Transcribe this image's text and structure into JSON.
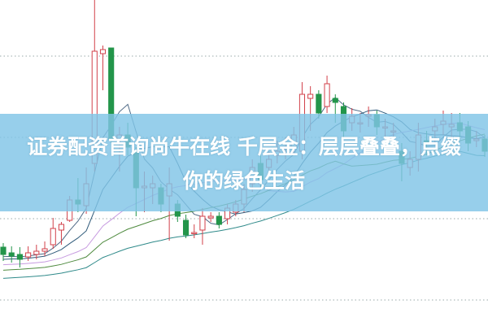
{
  "headline": {
    "line1": "证券配资首询尚牛在线 千层金：层层叠叠，点缀",
    "line2": "你的绿色生活"
  },
  "chart_data": {
    "type": "candlestick",
    "title": "",
    "xlabel": "",
    "ylabel": "",
    "ylim": [
      0,
      401
    ],
    "grid": "horizontal-dotted",
    "gridlines": [
      32,
      132,
      232,
      332
    ],
    "colors": {
      "up": "#d2404a",
      "down": "#23954a",
      "ma5": "#4f6a86",
      "ma10": "#2f5a7a",
      "ma20": "#c79be0",
      "ma30": "#4e8a3e",
      "ma60": "#2f8a8a",
      "banner": "#80c4e6"
    },
    "candles": [
      {
        "o": 97,
        "c": 88,
        "h": 102,
        "l": 80
      },
      {
        "o": 90,
        "c": 86,
        "h": 98,
        "l": 78
      },
      {
        "o": 88,
        "c": 82,
        "h": 97,
        "l": 72
      },
      {
        "o": 85,
        "c": 90,
        "h": 98,
        "l": 80
      },
      {
        "o": 88,
        "c": 92,
        "h": 100,
        "l": 82
      },
      {
        "o": 92,
        "c": 95,
        "h": 104,
        "l": 86
      },
      {
        "o": 100,
        "c": 120,
        "h": 133,
        "l": 95
      },
      {
        "o": 118,
        "c": 125,
        "h": 128,
        "l": 100
      },
      {
        "o": 130,
        "c": 155,
        "h": 160,
        "l": 128
      },
      {
        "o": 155,
        "c": 150,
        "h": 182,
        "l": 140
      },
      {
        "o": 148,
        "c": 175,
        "h": 195,
        "l": 138
      },
      {
        "o": 200,
        "c": 338,
        "h": 401,
        "l": 190
      },
      {
        "o": 335,
        "c": 340,
        "h": 345,
        "l": 290
      },
      {
        "o": 342,
        "c": 230,
        "h": 342,
        "l": 225
      },
      {
        "o": 230,
        "c": 235,
        "h": 245,
        "l": 190
      },
      {
        "o": 235,
        "c": 220,
        "h": 250,
        "l": 210
      },
      {
        "o": 215,
        "c": 170,
        "h": 220,
        "l": 135
      },
      {
        "o": 170,
        "c": 172,
        "h": 190,
        "l": 140
      },
      {
        "o": 170,
        "c": 175,
        "h": 185,
        "l": 150
      },
      {
        "o": 170,
        "c": 150,
        "h": 175,
        "l": 140
      },
      {
        "o": 160,
        "c": 175,
        "h": 195,
        "l": 105
      },
      {
        "o": 150,
        "c": 135,
        "h": 155,
        "l": 128
      },
      {
        "o": 130,
        "c": 112,
        "h": 137,
        "l": 108
      },
      {
        "o": 114,
        "c": 115,
        "h": 125,
        "l": 108
      },
      {
        "o": 118,
        "c": 135,
        "h": 145,
        "l": 100
      },
      {
        "o": 133,
        "c": 135,
        "h": 140,
        "l": 128
      },
      {
        "o": 135,
        "c": 125,
        "h": 140,
        "l": 120
      },
      {
        "o": 132,
        "c": 145,
        "h": 150,
        "l": 125
      },
      {
        "o": 140,
        "c": 150,
        "h": 155,
        "l": 135
      },
      {
        "o": 150,
        "c": 168,
        "h": 175,
        "l": 140
      },
      {
        "o": 175,
        "c": 195,
        "h": 205,
        "l": 165
      },
      {
        "o": 200,
        "c": 180,
        "h": 210,
        "l": 170
      },
      {
        "o": 195,
        "c": 205,
        "h": 215,
        "l": 185
      },
      {
        "o": 210,
        "c": 215,
        "h": 228,
        "l": 200
      },
      {
        "o": 218,
        "c": 220,
        "h": 232,
        "l": 205
      },
      {
        "o": 220,
        "c": 235,
        "h": 245,
        "l": 210
      },
      {
        "o": 215,
        "c": 285,
        "h": 300,
        "l": 205
      },
      {
        "o": 280,
        "c": 285,
        "h": 295,
        "l": 240
      },
      {
        "o": 285,
        "c": 262,
        "h": 290,
        "l": 255
      },
      {
        "o": 270,
        "c": 298,
        "h": 308,
        "l": 262
      },
      {
        "o": 280,
        "c": 275,
        "h": 285,
        "l": 250
      },
      {
        "o": 270,
        "c": 240,
        "h": 275,
        "l": 230
      },
      {
        "o": 250,
        "c": 258,
        "h": 268,
        "l": 240
      },
      {
        "o": 250,
        "c": 250,
        "h": 262,
        "l": 238
      },
      {
        "o": 258,
        "c": 260,
        "h": 270,
        "l": 245
      },
      {
        "o": 260,
        "c": 245,
        "h": 265,
        "l": 235
      },
      {
        "o": 245,
        "c": 245,
        "h": 255,
        "l": 232
      },
      {
        "o": 240,
        "c": 240,
        "h": 250,
        "l": 225
      },
      {
        "o": 215,
        "c": 200,
        "h": 225,
        "l": 178
      },
      {
        "o": 195,
        "c": 205,
        "h": 215,
        "l": 185
      },
      {
        "o": 205,
        "c": 235,
        "h": 250,
        "l": 190
      },
      {
        "o": 228,
        "c": 225,
        "h": 240,
        "l": 210
      },
      {
        "o": 240,
        "c": 245,
        "h": 255,
        "l": 225
      },
      {
        "o": 248,
        "c": 252,
        "h": 265,
        "l": 235
      },
      {
        "o": 245,
        "c": 248,
        "h": 262,
        "l": 230
      },
      {
        "o": 250,
        "c": 240,
        "h": 262,
        "l": 230
      },
      {
        "o": 245,
        "c": 225,
        "h": 252,
        "l": 215
      },
      {
        "o": 228,
        "c": 230,
        "h": 240,
        "l": 220
      },
      {
        "o": 230,
        "c": 215,
        "h": 235,
        "l": 208
      }
    ]
  }
}
